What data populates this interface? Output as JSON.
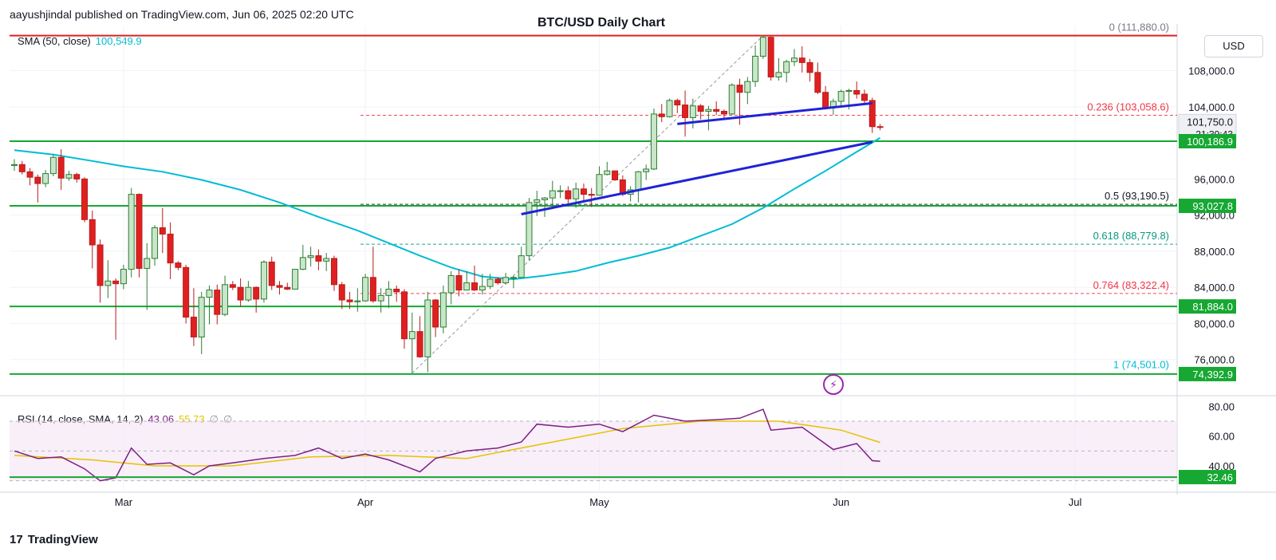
{
  "header": {
    "published": "aayushjindal published on TradingView.com, Jun 06, 2025 02:20 UTC"
  },
  "footer": {
    "brand": "TradingView",
    "logo_mark": "17"
  },
  "icons": {
    "flash": "flash-icon"
  },
  "chart_data": {
    "type": "candlestick",
    "title": "BTC/USD Daily Chart",
    "currency": "USD",
    "ylim": [
      72000,
      113000
    ],
    "y_ticks": [
      "108,000.0",
      "104,000.0",
      "96,000.0",
      "92,000.0",
      "88,000.0",
      "84,000.0",
      "80,000.0",
      "76,000.0"
    ],
    "x_ticks": [
      "Mar",
      "Apr",
      "May",
      "Jun",
      "Jul"
    ],
    "sma": {
      "label": "SMA (50, close)",
      "value": "100,549.9",
      "color": "#00bcd4"
    },
    "price_labels": [
      {
        "text": "101,750.0",
        "sub": "21:39:43",
        "kind": "current"
      },
      {
        "text": "100,186.9",
        "kind": "support"
      },
      {
        "text": "93,027.8",
        "kind": "support"
      },
      {
        "text": "81,884.0",
        "kind": "support"
      },
      {
        "text": "74,392.9",
        "kind": "support"
      }
    ],
    "fib_levels": [
      {
        "label": "0 (111,880.0)",
        "value": 111880,
        "color": "#787b86"
      },
      {
        "label": "0.236 (103,058.6)",
        "value": 103058.6,
        "color": "#f23645"
      },
      {
        "label": "0.5 (93,190.5)",
        "value": 93190.5,
        "color": "#131722"
      },
      {
        "label": "0.618 (88,779.8)",
        "value": 88779.8,
        "color": "#089981"
      },
      {
        "label": "0.764 (83,322.4)",
        "value": 83322.4,
        "color": "#f23645"
      },
      {
        "label": "1 (74,501.0)",
        "value": 74501,
        "color": "#00bcd4"
      }
    ],
    "horizontal_levels": [
      {
        "value": 111880,
        "color": "#e02020"
      },
      {
        "value": 100186.9,
        "color": "#16a832"
      },
      {
        "value": 93027.8,
        "color": "#16a832"
      },
      {
        "value": 81884,
        "color": "#16a832"
      },
      {
        "value": 74392.9,
        "color": "#16a832"
      }
    ],
    "trendlines": [
      {
        "from": [
          "2025-05-11",
          102100
        ],
        "to": [
          "2025-06-05",
          104400
        ],
        "color": "#1f23d6"
      },
      {
        "from": [
          "2025-04-21",
          92100
        ],
        "to": [
          "2025-06-05",
          100100
        ],
        "color": "#1f23d6"
      }
    ],
    "fib_anchor_line": {
      "from": [
        "2025-04-07",
        74501
      ],
      "to": [
        "2025-05-22",
        111880
      ]
    },
    "ohlc": [
      [
        "2025-02-15",
        97500,
        98200,
        96900,
        97600
      ],
      [
        "2025-02-16",
        97600,
        98000,
        96500,
        96800
      ],
      [
        "2025-02-17",
        96800,
        97200,
        95300,
        96200
      ],
      [
        "2025-02-18",
        96200,
        96500,
        93400,
        95500
      ],
      [
        "2025-02-19",
        95500,
        97000,
        95100,
        96600
      ],
      [
        "2025-02-20",
        96600,
        98700,
        96300,
        98400
      ],
      [
        "2025-02-21",
        98400,
        99300,
        94800,
        96100
      ],
      [
        "2025-02-22",
        96100,
        96900,
        95800,
        96500
      ],
      [
        "2025-02-23",
        96500,
        96700,
        95600,
        96000
      ],
      [
        "2025-02-24",
        96000,
        96200,
        91200,
        91500
      ],
      [
        "2025-02-25",
        91500,
        92500,
        86100,
        88700
      ],
      [
        "2025-02-26",
        88700,
        89300,
        82300,
        84200
      ],
      [
        "2025-02-27",
        84200,
        87000,
        82800,
        84700
      ],
      [
        "2025-02-28",
        84700,
        85000,
        78200,
        84400
      ],
      [
        "2025-03-01",
        84400,
        86500,
        83800,
        86000
      ],
      [
        "2025-03-02",
        86000,
        95000,
        85100,
        94300
      ],
      [
        "2025-03-03",
        94300,
        94400,
        85100,
        86100
      ],
      [
        "2025-03-04",
        86100,
        88900,
        81500,
        87200
      ],
      [
        "2025-03-05",
        87200,
        90900,
        86400,
        90600
      ],
      [
        "2025-03-06",
        90600,
        92800,
        87800,
        89900
      ],
      [
        "2025-03-07",
        89900,
        91200,
        84900,
        86700
      ],
      [
        "2025-03-08",
        86700,
        86900,
        85900,
        86200
      ],
      [
        "2025-03-09",
        86200,
        86500,
        80000,
        80700
      ],
      [
        "2025-03-10",
        80700,
        83900,
        77500,
        78500
      ],
      [
        "2025-03-11",
        78500,
        83500,
        76600,
        82900
      ],
      [
        "2025-03-12",
        82900,
        84200,
        79900,
        83700
      ],
      [
        "2025-03-13",
        83700,
        84300,
        79900,
        81000
      ],
      [
        "2025-03-14",
        81000,
        85300,
        80800,
        84300
      ],
      [
        "2025-03-15",
        84300,
        84700,
        83700,
        84000
      ],
      [
        "2025-03-16",
        84000,
        85000,
        81900,
        82600
      ],
      [
        "2025-03-17",
        82600,
        84700,
        82400,
        84000
      ],
      [
        "2025-03-18",
        84000,
        84100,
        81200,
        82700
      ],
      [
        "2025-03-19",
        82700,
        87000,
        82300,
        86800
      ],
      [
        "2025-03-20",
        86800,
        87400,
        83700,
        84200
      ],
      [
        "2025-03-21",
        84200,
        84700,
        83200,
        84000
      ],
      [
        "2025-03-22",
        84000,
        84500,
        83700,
        83800
      ],
      [
        "2025-03-23",
        83800,
        86000,
        83800,
        86000
      ],
      [
        "2025-03-24",
        86000,
        88700,
        85900,
        87300
      ],
      [
        "2025-03-25",
        87300,
        88500,
        86300,
        87500
      ],
      [
        "2025-03-26",
        87500,
        88200,
        85900,
        86900
      ],
      [
        "2025-03-27",
        86900,
        87800,
        85800,
        87200
      ],
      [
        "2025-03-28",
        87200,
        87500,
        83600,
        84300
      ],
      [
        "2025-03-29",
        84300,
        84600,
        81600,
        82600
      ],
      [
        "2025-03-30",
        82600,
        83500,
        81600,
        82400
      ],
      [
        "2025-03-31",
        82400,
        83900,
        81300,
        82500
      ],
      [
        "2025-04-01",
        82500,
        85500,
        82400,
        85100
      ],
      [
        "2025-04-02",
        85100,
        88500,
        82300,
        82500
      ],
      [
        "2025-04-03",
        82500,
        83900,
        81200,
        83100
      ],
      [
        "2025-04-04",
        83100,
        84700,
        81700,
        83800
      ],
      [
        "2025-04-05",
        83800,
        84200,
        82400,
        83500
      ],
      [
        "2025-04-06",
        83500,
        83800,
        77200,
        78300
      ],
      [
        "2025-04-07",
        78300,
        81200,
        74500,
        79100
      ],
      [
        "2025-04-08",
        79100,
        80800,
        76200,
        76300
      ],
      [
        "2025-04-09",
        76300,
        83500,
        74600,
        82600
      ],
      [
        "2025-04-10",
        82600,
        82700,
        78500,
        79600
      ],
      [
        "2025-04-11",
        79600,
        84200,
        78900,
        83400
      ],
      [
        "2025-04-12",
        83400,
        85800,
        82100,
        85300
      ],
      [
        "2025-04-13",
        85300,
        86000,
        83000,
        83700
      ],
      [
        "2025-04-14",
        83700,
        85800,
        83700,
        84500
      ],
      [
        "2025-04-15",
        84500,
        86400,
        83600,
        83700
      ],
      [
        "2025-04-16",
        83700,
        85500,
        83200,
        84100
      ],
      [
        "2025-04-17",
        84100,
        85500,
        83800,
        84900
      ],
      [
        "2025-04-18",
        84900,
        85100,
        84300,
        84500
      ],
      [
        "2025-04-19",
        84500,
        85600,
        84300,
        85100
      ],
      [
        "2025-04-20",
        85100,
        85300,
        83900,
        85100
      ],
      [
        "2025-04-21",
        85100,
        88500,
        85100,
        87500
      ],
      [
        "2025-04-22",
        87500,
        93900,
        87000,
        93400
      ],
      [
        "2025-04-23",
        93400,
        94700,
        91900,
        93700
      ],
      [
        "2025-04-24",
        93700,
        94000,
        91800,
        93900
      ],
      [
        "2025-04-25",
        93900,
        95800,
        92900,
        94700
      ],
      [
        "2025-04-26",
        94700,
        95300,
        93900,
        94700
      ],
      [
        "2025-04-27",
        94700,
        95200,
        93000,
        93800
      ],
      [
        "2025-04-28",
        93800,
        95600,
        92800,
        94900
      ],
      [
        "2025-04-29",
        94900,
        95500,
        93400,
        94300
      ],
      [
        "2025-04-30",
        94300,
        95000,
        92900,
        94200
      ],
      [
        "2025-05-01",
        94200,
        97400,
        94200,
        96500
      ],
      [
        "2025-05-02",
        96500,
        97900,
        96400,
        96900
      ],
      [
        "2025-05-03",
        96900,
        96900,
        95800,
        95900
      ],
      [
        "2025-05-04",
        95900,
        96400,
        94100,
        94300
      ],
      [
        "2025-05-05",
        94300,
        95200,
        93500,
        94800
      ],
      [
        "2025-05-06",
        94800,
        96900,
        93400,
        96800
      ],
      [
        "2025-05-07",
        96800,
        97600,
        95900,
        97100
      ],
      [
        "2025-05-08",
        97100,
        103800,
        97000,
        103200
      ],
      [
        "2025-05-09",
        103200,
        104300,
        102300,
        102900
      ],
      [
        "2025-05-10",
        102900,
        104900,
        102800,
        104700
      ],
      [
        "2025-05-11",
        104700,
        104900,
        103300,
        104200
      ],
      [
        "2025-05-12",
        104200,
        105800,
        100700,
        102800
      ],
      [
        "2025-05-13",
        102800,
        104900,
        101600,
        104100
      ],
      [
        "2025-05-14",
        104100,
        104300,
        102600,
        103500
      ],
      [
        "2025-05-15",
        103500,
        104100,
        101400,
        103700
      ],
      [
        "2025-05-16",
        103700,
        104600,
        103100,
        103500
      ],
      [
        "2025-05-17",
        103500,
        103700,
        102600,
        103200
      ],
      [
        "2025-05-18",
        103200,
        106600,
        103100,
        106400
      ],
      [
        "2025-05-19",
        106400,
        107100,
        102000,
        105600
      ],
      [
        "2025-05-20",
        105600,
        107300,
        104300,
        106800
      ],
      [
        "2025-05-21",
        106800,
        110800,
        106200,
        109600
      ],
      [
        "2025-05-22",
        109600,
        111880,
        109300,
        111700
      ],
      [
        "2025-05-23",
        111700,
        111800,
        106900,
        107300
      ],
      [
        "2025-05-24",
        107300,
        109400,
        106900,
        107800
      ],
      [
        "2025-05-25",
        107800,
        109200,
        106700,
        109000
      ],
      [
        "2025-05-26",
        109000,
        110400,
        108500,
        109400
      ],
      [
        "2025-05-27",
        109400,
        110700,
        107800,
        108900
      ],
      [
        "2025-05-28",
        108900,
        109300,
        106800,
        107800
      ],
      [
        "2025-05-29",
        107800,
        108900,
        105400,
        105600
      ],
      [
        "2025-05-30",
        105600,
        106300,
        103700,
        103900
      ],
      [
        "2025-05-31",
        103900,
        104900,
        103100,
        104600
      ],
      [
        "2025-06-01",
        104600,
        105900,
        103900,
        105700
      ],
      [
        "2025-06-02",
        105700,
        106000,
        103700,
        105800
      ],
      [
        "2025-06-03",
        105800,
        106800,
        104900,
        105400
      ],
      [
        "2025-06-04",
        105400,
        105900,
        104200,
        104700
      ],
      [
        "2025-06-05",
        104700,
        105000,
        101100,
        101800
      ],
      [
        "2025-06-06",
        101800,
        102100,
        101400,
        101750
      ]
    ],
    "sma_points": [
      [
        "2025-02-15",
        99200
      ],
      [
        "2025-02-20",
        98700
      ],
      [
        "2025-02-25",
        98000
      ],
      [
        "2025-03-01",
        97400
      ],
      [
        "2025-03-06",
        96800
      ],
      [
        "2025-03-11",
        95900
      ],
      [
        "2025-03-16",
        94800
      ],
      [
        "2025-03-21",
        93400
      ],
      [
        "2025-03-26",
        91800
      ],
      [
        "2025-03-31",
        90300
      ],
      [
        "2025-04-04",
        88900
      ],
      [
        "2025-04-08",
        87500
      ],
      [
        "2025-04-12",
        86200
      ],
      [
        "2025-04-16",
        85200
      ],
      [
        "2025-04-20",
        84900
      ],
      [
        "2025-04-24",
        85300
      ],
      [
        "2025-04-28",
        85800
      ],
      [
        "2025-05-02",
        86700
      ],
      [
        "2025-05-06",
        87500
      ],
      [
        "2025-05-10",
        88400
      ],
      [
        "2025-05-14",
        89700
      ],
      [
        "2025-05-18",
        91000
      ],
      [
        "2025-05-22",
        92800
      ],
      [
        "2025-05-26",
        94900
      ],
      [
        "2025-05-30",
        96900
      ],
      [
        "2025-06-03",
        99000
      ],
      [
        "2025-06-06",
        100549.9
      ]
    ],
    "rsi": {
      "label": "RSI (14, close, SMA, 14, 2)",
      "values_text": [
        "43.06",
        "55.73",
        "∅",
        "∅"
      ],
      "ylim": [
        25,
        85
      ],
      "y_ticks": [
        "80.00",
        "60.00",
        "40.00"
      ],
      "level_label": "32.46",
      "level_value": 32.46,
      "bands": [
        70,
        50,
        30
      ],
      "rsi_color": "#7e1f86",
      "rsi_ma_color": "#e6c200",
      "rsi_points": [
        [
          "2025-02-15",
          50
        ],
        [
          "2025-02-18",
          45
        ],
        [
          "2025-02-21",
          46
        ],
        [
          "2025-02-24",
          38
        ],
        [
          "2025-02-26",
          30
        ],
        [
          "2025-02-28",
          32
        ],
        [
          "2025-03-02",
          52
        ],
        [
          "2025-03-04",
          41
        ],
        [
          "2025-03-07",
          42
        ],
        [
          "2025-03-10",
          34
        ],
        [
          "2025-03-12",
          40
        ],
        [
          "2025-03-15",
          42
        ],
        [
          "2025-03-19",
          45
        ],
        [
          "2025-03-23",
          47
        ],
        [
          "2025-03-26",
          52
        ],
        [
          "2025-03-29",
          45
        ],
        [
          "2025-04-01",
          48
        ],
        [
          "2025-04-04",
          44
        ],
        [
          "2025-04-08",
          36
        ],
        [
          "2025-04-10",
          45
        ],
        [
          "2025-04-14",
          50
        ],
        [
          "2025-04-18",
          52
        ],
        [
          "2025-04-21",
          56
        ],
        [
          "2025-04-23",
          68
        ],
        [
          "2025-04-27",
          66
        ],
        [
          "2025-05-01",
          68
        ],
        [
          "2025-05-04",
          63
        ],
        [
          "2025-05-08",
          74
        ],
        [
          "2025-05-12",
          70
        ],
        [
          "2025-05-16",
          71
        ],
        [
          "2025-05-19",
          72
        ],
        [
          "2025-05-22",
          78
        ],
        [
          "2025-05-23",
          64
        ],
        [
          "2025-05-27",
          66
        ],
        [
          "2025-05-31",
          51
        ],
        [
          "2025-06-03",
          55
        ],
        [
          "2025-06-05",
          43.5
        ],
        [
          "2025-06-06",
          43.06
        ]
      ],
      "rsi_ma_points": [
        [
          "2025-02-15",
          47
        ],
        [
          "2025-02-25",
          44
        ],
        [
          "2025-03-05",
          40
        ],
        [
          "2025-03-15",
          40
        ],
        [
          "2025-03-25",
          46
        ],
        [
          "2025-04-04",
          47
        ],
        [
          "2025-04-14",
          45
        ],
        [
          "2025-04-24",
          55
        ],
        [
          "2025-05-04",
          65
        ],
        [
          "2025-05-14",
          70
        ],
        [
          "2025-05-24",
          70
        ],
        [
          "2025-06-01",
          64
        ],
        [
          "2025-06-06",
          55.73
        ]
      ]
    }
  }
}
